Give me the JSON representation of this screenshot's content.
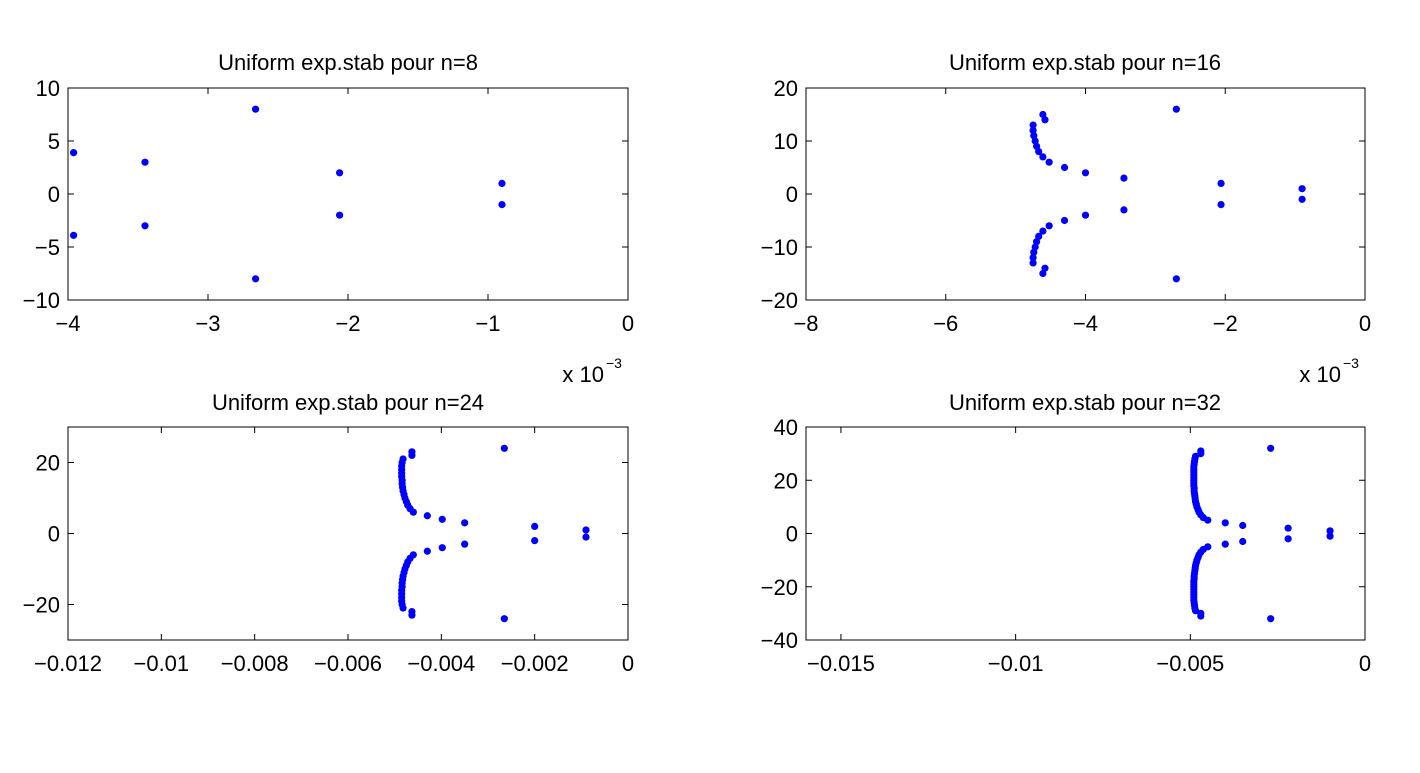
{
  "figure": {
    "background": "#ffffff",
    "marker_color": "#0000ff"
  },
  "chart_data": [
    {
      "type": "scatter",
      "title": "Uniform exp.stab pour n=8",
      "xlim": [
        -0.004,
        0
      ],
      "ylim": [
        -10,
        10
      ],
      "x_ticks": [
        -0.004,
        -0.003,
        -0.002,
        -0.001,
        0
      ],
      "x_tick_labels": [
        "−4",
        "−3",
        "−2",
        "−1",
        "0"
      ],
      "x_multiplier": {
        "base": "x 10",
        "exponent": "−3"
      },
      "y_ticks": [
        10,
        5,
        0,
        -5,
        -10
      ],
      "y_tick_labels": [
        "10",
        "5",
        "0",
        "−5",
        "−10"
      ],
      "grid": false,
      "series": [
        {
          "color": "#0000ff",
          "points": [
            [
              -0.00396,
              3.9
            ],
            [
              -0.00396,
              -3.9
            ],
            [
              -0.00345,
              3.0
            ],
            [
              -0.00345,
              -3.0
            ],
            [
              -0.00266,
              8.0
            ],
            [
              -0.00266,
              -8.0
            ],
            [
              -0.00206,
              2.0
            ],
            [
              -0.00206,
              -2.0
            ],
            [
              -0.0009,
              1.0
            ],
            [
              -0.0009,
              -1.0
            ]
          ]
        }
      ]
    },
    {
      "type": "scatter",
      "title": "Uniform exp.stab pour n=16",
      "xlim": [
        -0.008,
        0
      ],
      "ylim": [
        -20,
        20
      ],
      "x_ticks": [
        -0.008,
        -0.006,
        -0.004,
        -0.002,
        0
      ],
      "x_tick_labels": [
        "−8",
        "−6",
        "−4",
        "−2",
        "0"
      ],
      "x_multiplier": {
        "base": "x 10",
        "exponent": "−3"
      },
      "y_ticks": [
        20,
        10,
        0,
        -10,
        -20
      ],
      "y_tick_labels": [
        "20",
        "10",
        "0",
        "−10",
        "−20"
      ],
      "grid": false,
      "series": [
        {
          "color": "#0000ff",
          "points": [
            [
              -0.00475,
              13.0
            ],
            [
              -0.00475,
              12.0
            ],
            [
              -0.00474,
              11.0
            ],
            [
              -0.00472,
              10.0
            ],
            [
              -0.0047,
              9.0
            ],
            [
              -0.00467,
              8.0
            ],
            [
              -0.00461,
              7.0
            ],
            [
              -0.00452,
              6.0
            ],
            [
              -0.0043,
              5.0
            ],
            [
              -0.004,
              4.0
            ],
            [
              -0.00345,
              3.0
            ],
            [
              -0.00206,
              2.0
            ],
            [
              -0.0009,
              1.0
            ],
            [
              -0.00461,
              15.0
            ],
            [
              -0.00458,
              14.0
            ],
            [
              -0.0027,
              16.0
            ],
            [
              -0.00475,
              -13.0
            ],
            [
              -0.00475,
              -12.0
            ],
            [
              -0.00474,
              -11.0
            ],
            [
              -0.00472,
              -10.0
            ],
            [
              -0.0047,
              -9.0
            ],
            [
              -0.00467,
              -8.0
            ],
            [
              -0.00461,
              -7.0
            ],
            [
              -0.00452,
              -6.0
            ],
            [
              -0.0043,
              -5.0
            ],
            [
              -0.004,
              -4.0
            ],
            [
              -0.00345,
              -3.0
            ],
            [
              -0.00206,
              -2.0
            ],
            [
              -0.0009,
              -1.0
            ],
            [
              -0.00461,
              -15.0
            ],
            [
              -0.00458,
              -14.0
            ],
            [
              -0.0027,
              -16.0
            ]
          ]
        }
      ]
    },
    {
      "type": "scatter",
      "title": "Uniform exp.stab pour n=24",
      "xlim": [
        -0.012,
        0
      ],
      "ylim": [
        -30,
        30
      ],
      "x_ticks": [
        -0.012,
        -0.01,
        -0.008,
        -0.006,
        -0.004,
        -0.002,
        0
      ],
      "x_tick_labels": [
        "−0.012",
        "−0.01",
        "−0.008",
        "−0.006",
        "−0.004",
        "−0.002",
        "0"
      ],
      "y_ticks": [
        20,
        0,
        -20
      ],
      "y_tick_labels": [
        "20",
        "0",
        "−20"
      ],
      "grid": false,
      "series": [
        {
          "color": "#0000ff",
          "points": [
            [
              -0.00482,
              21.0
            ],
            [
              -0.00484,
              20.0
            ],
            [
              -0.00485,
              19.0
            ],
            [
              -0.00485,
              18.0
            ],
            [
              -0.00485,
              17.0
            ],
            [
              -0.00485,
              16.0
            ],
            [
              -0.00484,
              15.0
            ],
            [
              -0.00484,
              14.0
            ],
            [
              -0.00483,
              13.0
            ],
            [
              -0.00482,
              12.0
            ],
            [
              -0.0048,
              11.0
            ],
            [
              -0.00478,
              10.0
            ],
            [
              -0.00475,
              9.0
            ],
            [
              -0.00472,
              8.0
            ],
            [
              -0.00467,
              7.0
            ],
            [
              -0.0046,
              6.0
            ],
            [
              -0.0043,
              5.0
            ],
            [
              -0.00398,
              4.0
            ],
            [
              -0.0035,
              3.0
            ],
            [
              -0.002,
              2.0
            ],
            [
              -0.0009,
              1.0
            ],
            [
              -0.00463,
              23.0
            ],
            [
              -0.00463,
              22.0
            ],
            [
              -0.00265,
              24.0
            ],
            [
              -0.00482,
              -21.0
            ],
            [
              -0.00484,
              -20.0
            ],
            [
              -0.00485,
              -19.0
            ],
            [
              -0.00485,
              -18.0
            ],
            [
              -0.00485,
              -17.0
            ],
            [
              -0.00485,
              -16.0
            ],
            [
              -0.00484,
              -15.0
            ],
            [
              -0.00484,
              -14.0
            ],
            [
              -0.00483,
              -13.0
            ],
            [
              -0.00482,
              -12.0
            ],
            [
              -0.0048,
              -11.0
            ],
            [
              -0.00478,
              -10.0
            ],
            [
              -0.00475,
              -9.0
            ],
            [
              -0.00472,
              -8.0
            ],
            [
              -0.00467,
              -7.0
            ],
            [
              -0.0046,
              -6.0
            ],
            [
              -0.0043,
              -5.0
            ],
            [
              -0.00398,
              -4.0
            ],
            [
              -0.0035,
              -3.0
            ],
            [
              -0.002,
              -2.0
            ],
            [
              -0.0009,
              -1.0
            ],
            [
              -0.00463,
              -23.0
            ],
            [
              -0.00463,
              -22.0
            ],
            [
              -0.00265,
              -24.0
            ]
          ]
        }
      ]
    },
    {
      "type": "scatter",
      "title": "Uniform exp.stab pour n=32",
      "xlim": [
        -0.016,
        0
      ],
      "ylim": [
        -40,
        40
      ],
      "x_ticks": [
        -0.015,
        -0.01,
        -0.005,
        0
      ],
      "x_tick_labels": [
        "−0.015",
        "−0.01",
        "−0.005",
        "0"
      ],
      "y_ticks": [
        40,
        20,
        0,
        -20,
        -40
      ],
      "y_tick_labels": [
        "40",
        "20",
        "0",
        "−20",
        "−40"
      ],
      "grid": false,
      "series": [
        {
          "color": "#0000ff",
          "points": [
            [
              -0.00485,
              29.0
            ],
            [
              -0.00487,
              28.0
            ],
            [
              -0.00488,
              27.0
            ],
            [
              -0.00489,
              26.0
            ],
            [
              -0.0049,
              25.0
            ],
            [
              -0.0049,
              24.0
            ],
            [
              -0.0049,
              23.0
            ],
            [
              -0.0049,
              22.0
            ],
            [
              -0.0049,
              21.0
            ],
            [
              -0.0049,
              20.0
            ],
            [
              -0.0049,
              19.0
            ],
            [
              -0.0049,
              18.0
            ],
            [
              -0.00489,
              17.0
            ],
            [
              -0.00489,
              16.0
            ],
            [
              -0.00488,
              15.0
            ],
            [
              -0.00487,
              14.0
            ],
            [
              -0.00486,
              13.0
            ],
            [
              -0.00485,
              12.0
            ],
            [
              -0.00483,
              11.0
            ],
            [
              -0.00481,
              10.0
            ],
            [
              -0.00478,
              9.0
            ],
            [
              -0.00475,
              8.0
            ],
            [
              -0.0047,
              7.0
            ],
            [
              -0.00463,
              6.0
            ],
            [
              -0.0045,
              5.0
            ],
            [
              -0.004,
              4.0
            ],
            [
              -0.0035,
              3.0
            ],
            [
              -0.0022,
              2.0
            ],
            [
              -0.001,
              1.0
            ],
            [
              -0.0047,
              31.0
            ],
            [
              -0.0047,
              30.0
            ],
            [
              -0.0027,
              32.0
            ],
            [
              -0.00485,
              -29.0
            ],
            [
              -0.00487,
              -28.0
            ],
            [
              -0.00488,
              -27.0
            ],
            [
              -0.00489,
              -26.0
            ],
            [
              -0.0049,
              -25.0
            ],
            [
              -0.0049,
              -24.0
            ],
            [
              -0.0049,
              -23.0
            ],
            [
              -0.0049,
              -22.0
            ],
            [
              -0.0049,
              -21.0
            ],
            [
              -0.0049,
              -20.0
            ],
            [
              -0.0049,
              -19.0
            ],
            [
              -0.0049,
              -18.0
            ],
            [
              -0.00489,
              -17.0
            ],
            [
              -0.00489,
              -16.0
            ],
            [
              -0.00488,
              -15.0
            ],
            [
              -0.00487,
              -14.0
            ],
            [
              -0.00486,
              -13.0
            ],
            [
              -0.00485,
              -12.0
            ],
            [
              -0.00483,
              -11.0
            ],
            [
              -0.00481,
              -10.0
            ],
            [
              -0.00478,
              -9.0
            ],
            [
              -0.00475,
              -8.0
            ],
            [
              -0.0047,
              -7.0
            ],
            [
              -0.00463,
              -6.0
            ],
            [
              -0.0045,
              -5.0
            ],
            [
              -0.004,
              -4.0
            ],
            [
              -0.0035,
              -3.0
            ],
            [
              -0.0022,
              -2.0
            ],
            [
              -0.001,
              -1.0
            ],
            [
              -0.0047,
              -31.0
            ],
            [
              -0.0047,
              -30.0
            ],
            [
              -0.0027,
              -32.0
            ]
          ]
        }
      ]
    }
  ]
}
